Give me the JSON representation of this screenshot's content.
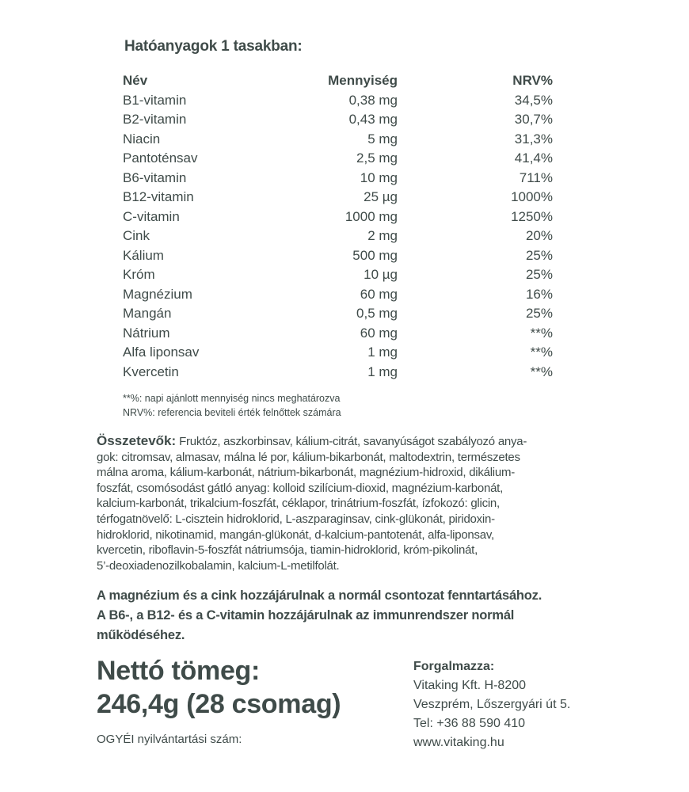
{
  "title": "Hatóanyagok 1 tasakban:",
  "table": {
    "headers": [
      "Név",
      "Mennyiség",
      "NRV%"
    ],
    "rows": [
      [
        "B1-vitamin",
        "0,38 mg",
        "34,5%"
      ],
      [
        "B2-vitamin",
        "0,43 mg",
        "30,7%"
      ],
      [
        "Niacin",
        "5 mg",
        "31,3%"
      ],
      [
        "Pantoténsav",
        "2,5 mg",
        "41,4%"
      ],
      [
        "B6-vitamin",
        "10 mg",
        "711%"
      ],
      [
        "B12-vitamin",
        "25 µg",
        "1000%"
      ],
      [
        "C-vitamin",
        "1000 mg",
        "1250%"
      ],
      [
        "Cink",
        "2 mg",
        "20%"
      ],
      [
        "Kálium",
        "500 mg",
        "25%"
      ],
      [
        "Króm",
        "10 µg",
        "25%"
      ],
      [
        "Magnézium",
        "60 mg",
        "16%"
      ],
      [
        "Mangán",
        "0,5 mg",
        "25%"
      ],
      [
        "Nátrium",
        "60 mg",
        "**%"
      ],
      [
        "Alfa liponsav",
        "1 mg",
        "**%"
      ],
      [
        "Kvercetin",
        "1 mg",
        "**%"
      ]
    ]
  },
  "notes": [
    "**%: napi ajánlott mennyiség nincs meghatározva",
    "NRV%: referencia beviteli érték felnőttek számára"
  ],
  "ingredients": {
    "label": "Összetevők:",
    "lines": [
      " Fruktóz, aszkorbinsav, kálium-citrát, savanyúságot szabályozó anya-",
      "gok: citromsav, almasav, málna lé por, kálium-bikarbonát, maltodextrin, természetes",
      "málna aroma, kálium-karbonát, nátrium-bikarbonát, magnézium-hidroxid, dikálium-",
      "foszfát, csomósodást gátló anyag: kolloid szilícium-dioxid, magnézium-karbonát,",
      "kalcium-karbonát, trikalcium-foszfát, céklapor, trinátrium-foszfát, ízfokozó: glicin,",
      "térfogatnövelő: L-cisztein hidroklorid, L-aszparaginsav, cink-glükonát, piridoxin-",
      "hidroklorid, nikotinamid, mangán-glükonát, d-kalcium-pantotenát, alfa-liponsav,",
      "kvercetin, riboflavin-5-foszfát nátriumsója, tiamin-hidroklorid, króm-pikolinát,",
      "5’-deoxiadenozilkobalamin, kalcium-L-metilfolát."
    ]
  },
  "claims": [
    "A magnézium és a cink hozzájárulnak a normál csontozat fenntartásához.",
    "A B6-, a B12- és a C-vitamin hozzájárulnak az immunrendszer normál",
    "működéséhez."
  ],
  "net": [
    "Nettó tömeg:",
    "246,4g (28 csomag)"
  ],
  "ogyei": "OGYÉI nyilvántartási szám:",
  "distributor": {
    "heading": "Forgalmazza:",
    "lines": [
      "Vitaking Kft. H-8200",
      "Veszprém, Lőszergyári út 5.",
      "Tel: +36 88 590 410",
      "www.vitaking.hu"
    ]
  }
}
